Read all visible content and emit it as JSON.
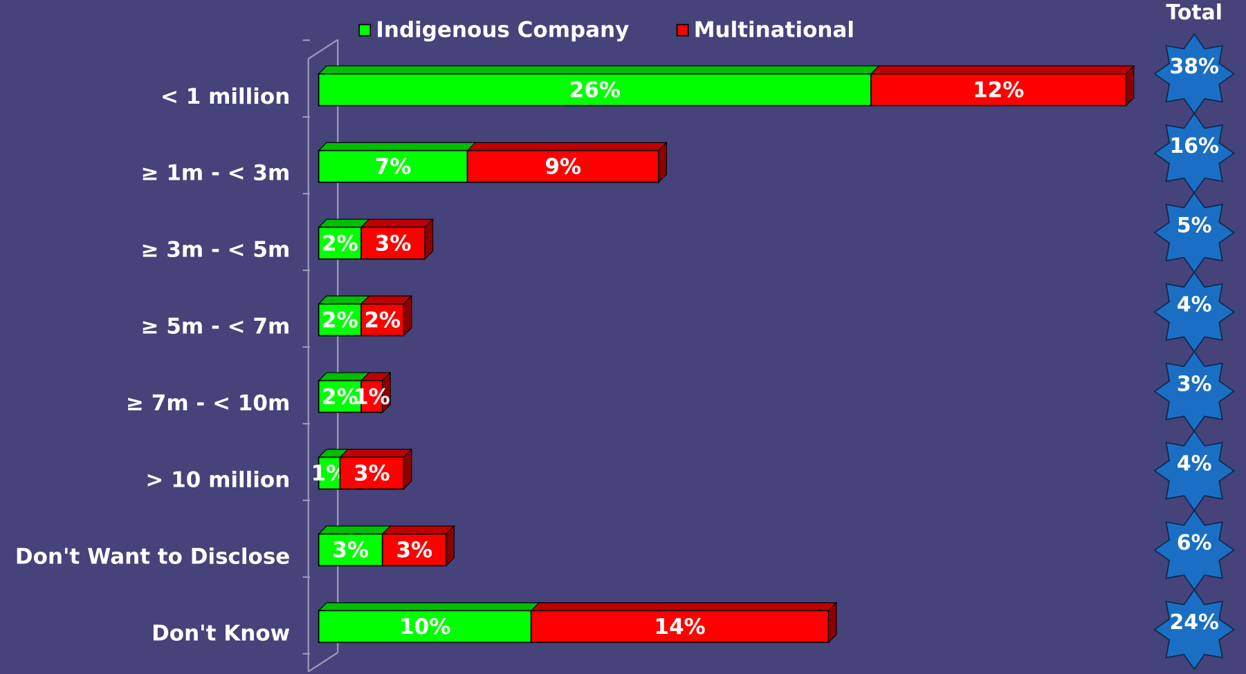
{
  "chart_data": {
    "type": "bar",
    "orientation": "horizontal",
    "stacked": true,
    "categories": [
      "< 1 million",
      "≥ 1m - < 3m",
      "≥ 3m - < 5m",
      "≥ 5m - < 7m",
      "≥ 7m - < 10m",
      "> 10 million",
      "Don't Want to Disclose",
      "Don't Know"
    ],
    "series": [
      {
        "name": "Indigenous Company",
        "color": "#00ff00",
        "values": [
          26,
          7,
          2,
          2,
          2,
          1,
          3,
          10
        ],
        "value_labels": [
          "26%",
          "7%",
          "2%",
          "2%",
          "2%",
          "1%",
          "3%",
          "10%"
        ]
      },
      {
        "name": "Multinational",
        "color": "#ff0000",
        "values": [
          12,
          9,
          3,
          2,
          1,
          3,
          3,
          14
        ],
        "value_labels": [
          "12%",
          "9%",
          "3%",
          "2%",
          "1%",
          "3%",
          "3%",
          "14%"
        ]
      }
    ],
    "total_title": "Total",
    "totals": [
      38,
      16,
      5,
      4,
      3,
      4,
      6,
      24
    ],
    "total_labels": [
      "38%",
      "16%",
      "5%",
      "4%",
      "3%",
      "4%",
      "6%",
      "24%"
    ],
    "total_color": "#1a6fc4",
    "xlim": [
      0,
      38
    ]
  }
}
